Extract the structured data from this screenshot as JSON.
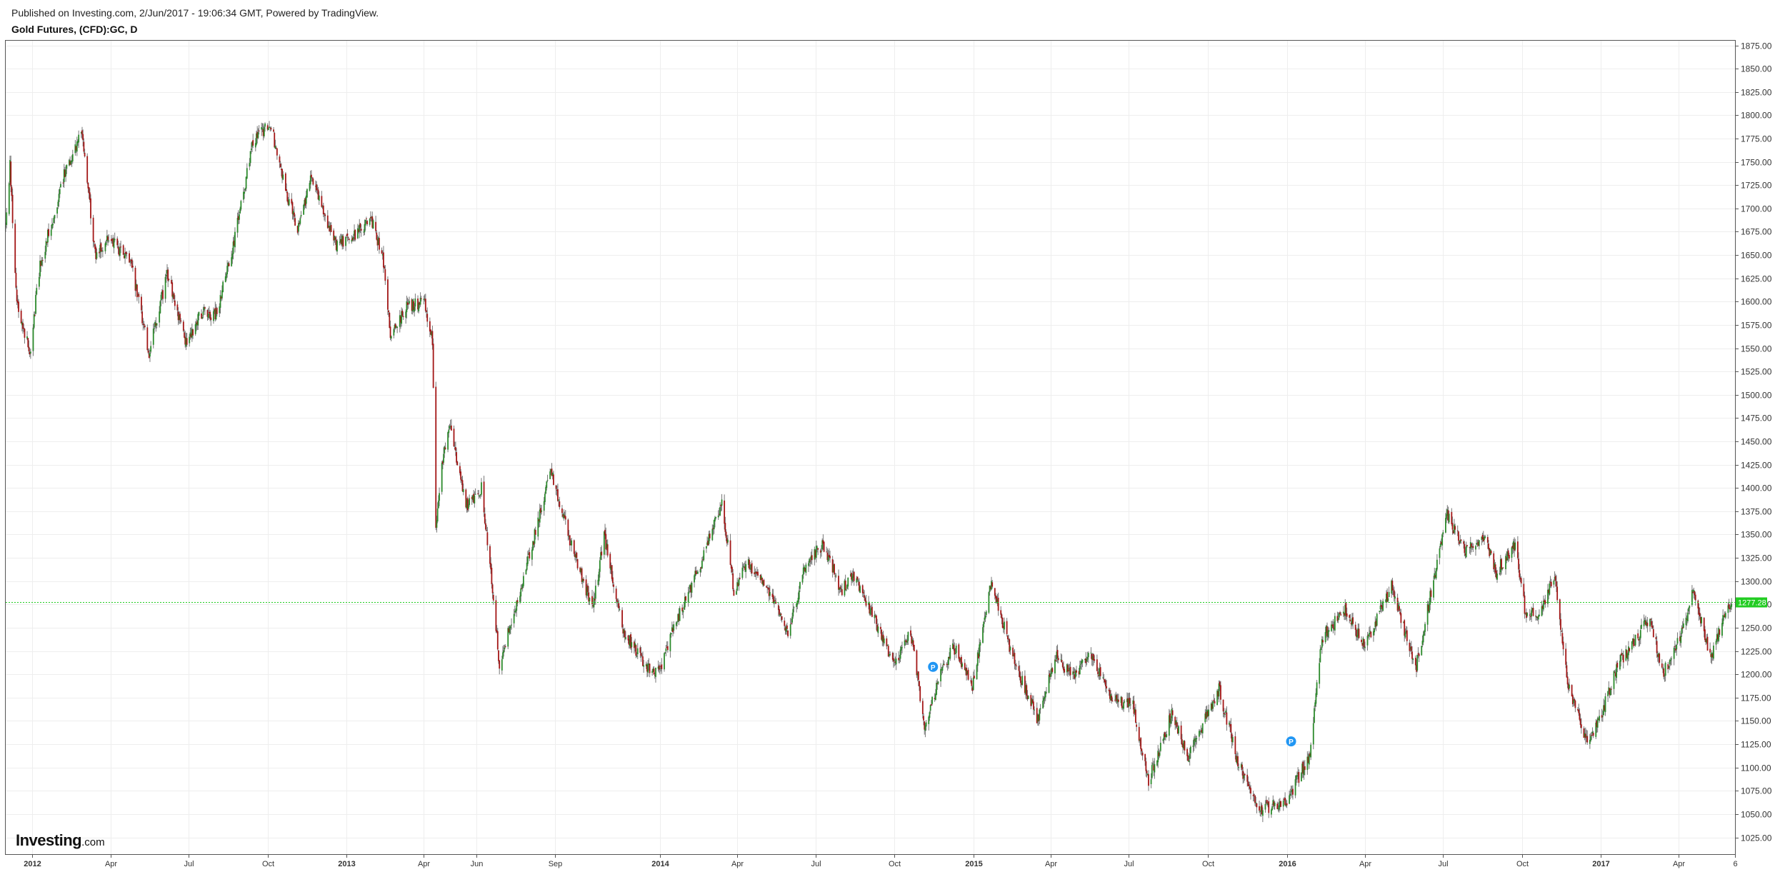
{
  "header": {
    "published": "Published on Investing.com, 2/Jun/2017 - 19:06:34 GMT, Powered by TradingView.",
    "symbol": "Gold Futures, (CFD):GC, D"
  },
  "logo": {
    "main": "Investing",
    "suffix": ".com"
  },
  "colors": {
    "up": "#2b8a2b",
    "down": "#a31616",
    "grid": "#eeeeee",
    "price_line": "#22cc22",
    "price_label_bg": "#22cc22",
    "marker": "#2196f3"
  },
  "chart_data": {
    "type": "candlestick",
    "title": "Gold Futures, (CFD):GC, D",
    "ylim": [
      1007,
      1880
    ],
    "y_ticks": [
      "1875.00",
      "1850.00",
      "1825.00",
      "1800.00",
      "1775.00",
      "1750.00",
      "1725.00",
      "1700.00",
      "1675.00",
      "1650.00",
      "1625.00",
      "1600.00",
      "1575.00",
      "1550.00",
      "1525.00",
      "1500.00",
      "1475.00",
      "1450.00",
      "1425.00",
      "1400.00",
      "1375.00",
      "1350.00",
      "1325.00",
      "1300.00",
      "1275.00",
      "1250.00",
      "1225.00",
      "1200.00",
      "1175.00",
      "1150.00",
      "1125.00",
      "1100.00",
      "1075.00",
      "1050.00",
      "1025.00"
    ],
    "x_ticks": [
      {
        "label": "2012",
        "date": "2012-01-01",
        "year": true
      },
      {
        "label": "Apr",
        "date": "2012-04-01"
      },
      {
        "label": "Jul",
        "date": "2012-07-01"
      },
      {
        "label": "Oct",
        "date": "2012-10-01"
      },
      {
        "label": "2013",
        "date": "2013-01-01",
        "year": true
      },
      {
        "label": "Apr",
        "date": "2013-04-01"
      },
      {
        "label": "Jun",
        "date": "2013-06-01"
      },
      {
        "label": "Sep",
        "date": "2013-09-01"
      },
      {
        "label": "2014",
        "date": "2014-01-01",
        "year": true
      },
      {
        "label": "Apr",
        "date": "2014-04-01"
      },
      {
        "label": "Jul",
        "date": "2014-07-01"
      },
      {
        "label": "Oct",
        "date": "2014-10-01"
      },
      {
        "label": "2015",
        "date": "2015-01-01",
        "year": true
      },
      {
        "label": "Apr",
        "date": "2015-04-01"
      },
      {
        "label": "Jul",
        "date": "2015-07-01"
      },
      {
        "label": "Oct",
        "date": "2015-10-01"
      },
      {
        "label": "2016",
        "date": "2016-01-01",
        "year": true
      },
      {
        "label": "Apr",
        "date": "2016-04-01"
      },
      {
        "label": "Jul",
        "date": "2016-07-01"
      },
      {
        "label": "Oct",
        "date": "2016-10-01"
      },
      {
        "label": "2017",
        "date": "2017-01-01",
        "year": true
      },
      {
        "label": "Apr",
        "date": "2017-04-01"
      },
      {
        "label": "6",
        "date": "2017-06-06"
      }
    ],
    "x_range": [
      "2011-12-01",
      "2017-06-06"
    ],
    "current_price": "1277.28",
    "current_value": 1277.28,
    "markers": [
      {
        "label": "P",
        "date": "2014-11-15",
        "value": 1208
      },
      {
        "label": "P",
        "date": "2016-01-06",
        "value": 1128
      }
    ],
    "anchors": [
      [
        "2011-12-01",
        1680
      ],
      [
        "2011-12-06",
        1745
      ],
      [
        "2011-12-14",
        1600
      ],
      [
        "2011-12-29",
        1545
      ],
      [
        "2012-01-10",
        1640
      ],
      [
        "2012-01-25",
        1690
      ],
      [
        "2012-02-08",
        1740
      ],
      [
        "2012-02-28",
        1785
      ],
      [
        "2012-03-14",
        1650
      ],
      [
        "2012-03-30",
        1670
      ],
      [
        "2012-04-25",
        1640
      ],
      [
        "2012-05-16",
        1545
      ],
      [
        "2012-06-06",
        1630
      ],
      [
        "2012-06-28",
        1555
      ],
      [
        "2012-07-17",
        1590
      ],
      [
        "2012-08-02",
        1585
      ],
      [
        "2012-08-23",
        1665
      ],
      [
        "2012-09-14",
        1770
      ],
      [
        "2012-10-04",
        1792
      ],
      [
        "2012-10-23",
        1715
      ],
      [
        "2012-11-05",
        1680
      ],
      [
        "2012-11-22",
        1735
      ],
      [
        "2012-12-05",
        1695
      ],
      [
        "2012-12-20",
        1662
      ],
      [
        "2013-01-10",
        1670
      ],
      [
        "2013-01-29",
        1690
      ],
      [
        "2013-02-12",
        1650
      ],
      [
        "2013-02-21",
        1565
      ],
      [
        "2013-03-12",
        1595
      ],
      [
        "2013-04-01",
        1600
      ],
      [
        "2013-04-11",
        1560
      ],
      [
        "2013-04-15",
        1360
      ],
      [
        "2013-04-22",
        1425
      ],
      [
        "2013-05-01",
        1470
      ],
      [
        "2013-05-20",
        1380
      ],
      [
        "2013-06-07",
        1400
      ],
      [
        "2013-06-20",
        1290
      ],
      [
        "2013-06-28",
        1210
      ],
      [
        "2013-07-10",
        1250
      ],
      [
        "2013-07-31",
        1320
      ],
      [
        "2013-08-27",
        1420
      ],
      [
        "2013-09-10",
        1370
      ],
      [
        "2013-09-26",
        1320
      ],
      [
        "2013-10-15",
        1270
      ],
      [
        "2013-10-28",
        1350
      ],
      [
        "2013-11-20",
        1245
      ],
      [
        "2013-12-19",
        1205
      ],
      [
        "2013-12-31",
        1202
      ],
      [
        "2014-01-17",
        1250
      ],
      [
        "2014-02-18",
        1320
      ],
      [
        "2014-03-14",
        1385
      ],
      [
        "2014-03-28",
        1290
      ],
      [
        "2014-04-14",
        1320
      ],
      [
        "2014-05-05",
        1295
      ],
      [
        "2014-05-30",
        1245
      ],
      [
        "2014-06-20",
        1320
      ],
      [
        "2014-07-10",
        1340
      ],
      [
        "2014-07-31",
        1290
      ],
      [
        "2014-08-15",
        1305
      ],
      [
        "2014-09-05",
        1265
      ],
      [
        "2014-09-30",
        1210
      ],
      [
        "2014-10-20",
        1245
      ],
      [
        "2014-11-06",
        1140
      ],
      [
        "2014-11-21",
        1195
      ],
      [
        "2014-12-09",
        1230
      ],
      [
        "2014-12-31",
        1185
      ],
      [
        "2015-01-22",
        1302
      ],
      [
        "2015-02-13",
        1225
      ],
      [
        "2015-03-17",
        1150
      ],
      [
        "2015-04-06",
        1220
      ],
      [
        "2015-04-28",
        1195
      ],
      [
        "2015-05-18",
        1225
      ],
      [
        "2015-06-08",
        1175
      ],
      [
        "2015-07-06",
        1165
      ],
      [
        "2015-07-24",
        1085
      ],
      [
        "2015-08-21",
        1160
      ],
      [
        "2015-09-08",
        1110
      ],
      [
        "2015-10-14",
        1185
      ],
      [
        "2015-11-05",
        1105
      ],
      [
        "2015-12-02",
        1055
      ],
      [
        "2015-12-31",
        1062
      ],
      [
        "2016-01-28",
        1115
      ],
      [
        "2016-02-11",
        1240
      ],
      [
        "2016-03-10",
        1270
      ],
      [
        "2016-03-31",
        1230
      ],
      [
        "2016-05-02",
        1295
      ],
      [
        "2016-05-30",
        1205
      ],
      [
        "2016-06-24",
        1320
      ],
      [
        "2016-07-06",
        1370
      ],
      [
        "2016-07-27",
        1330
      ],
      [
        "2016-08-18",
        1350
      ],
      [
        "2016-09-01",
        1310
      ],
      [
        "2016-09-23",
        1340
      ],
      [
        "2016-10-05",
        1265
      ],
      [
        "2016-10-21",
        1265
      ],
      [
        "2016-11-08",
        1305
      ],
      [
        "2016-11-24",
        1185
      ],
      [
        "2016-12-15",
        1128
      ],
      [
        "2016-12-30",
        1150
      ],
      [
        "2017-01-20",
        1210
      ],
      [
        "2017-02-27",
        1260
      ],
      [
        "2017-03-14",
        1200
      ],
      [
        "2017-04-10",
        1255
      ],
      [
        "2017-04-18",
        1290
      ],
      [
        "2017-05-09",
        1218
      ],
      [
        "2017-05-25",
        1265
      ],
      [
        "2017-06-02",
        1277
      ]
    ]
  }
}
